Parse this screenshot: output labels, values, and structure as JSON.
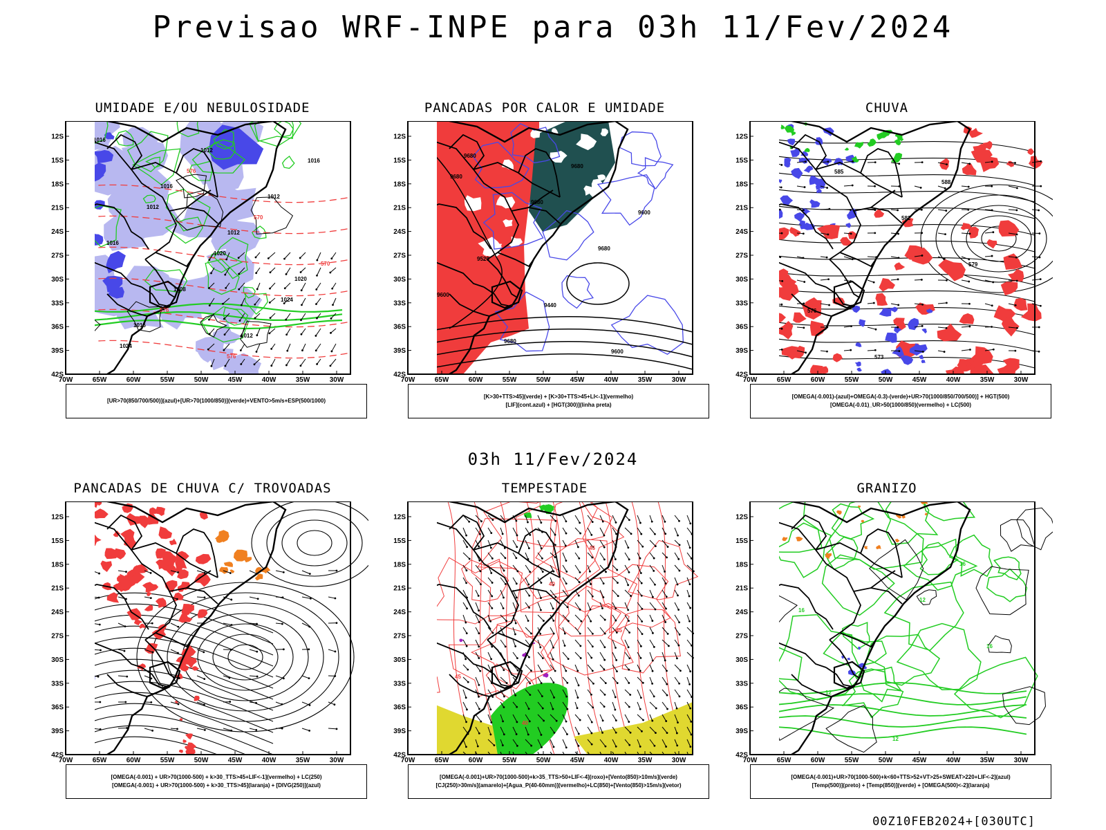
{
  "main_title": "Previsao WRF-INPE  para 03h 11/Fev/2024",
  "mid_title": "03h 11/Fev/2024",
  "footer": "00Z10FEB2024+[030UTC]",
  "lat_ticks": [
    "12S",
    "15S",
    "18S",
    "21S",
    "24S",
    "27S",
    "30S",
    "33S",
    "36S",
    "39S",
    "42S"
  ],
  "lon_ticks": [
    "70W",
    "65W",
    "60W",
    "55W",
    "50W",
    "45W",
    "40W",
    "35W",
    "30W"
  ],
  "colors": {
    "blue": "#4848e8",
    "light_blue": "#b8b8f0",
    "green": "#22cc22",
    "red": "#f03c3c",
    "dark_teal": "#205050",
    "yellow": "#e0d830",
    "orange": "#f08020",
    "purple": "#a020c0"
  },
  "panels": [
    {
      "title": "UMIDADE E/OU NEBULOSIDADE",
      "legend": [
        "[UR>70(850/700/500)](azul)+[UR>70(1000/850)](verde)+VENTO>5m/s+ESP(500/1000)"
      ],
      "labels": [
        "1016",
        "1016",
        "1012",
        "1020",
        "1016",
        "1012",
        "1012",
        "1016",
        "1008",
        "1012",
        "1016",
        "1012",
        "1020",
        "1024",
        "1024",
        "576",
        "570",
        "570",
        "576",
        "576"
      ]
    },
    {
      "title": "PANCADAS POR CALOR E UMIDADE",
      "legend": [
        "[K>30+TTS>45](verde) + [K>30+TTS>45+LI<-1](vermelho)",
        "[LIF](cont.azul) + [HGT(300)](linha preta)"
      ],
      "labels": [
        "9680",
        "9680",
        "9680",
        "9600",
        "9680",
        "9680",
        "9600",
        "9520",
        "9440",
        "9600",
        "9680"
      ]
    },
    {
      "title": "CHUVA",
      "legend": [
        "[OMEGA(-0.001)-(azul)+OMEGA(-0.3)-(verde)+UR>70(1000/850/700/500)] + HGT(500)",
        "[OMEGA(-0.01)_UR>50(1000/850)(vermelho) + LC(500)"
      ],
      "labels": [
        "585",
        "582",
        "579",
        "576",
        "573",
        "588"
      ]
    },
    {
      "title": "PANCADAS DE CHUVA C/ TROVOADAS",
      "legend": [
        "[OMEGA(-0.001) + UR>70(1000-500) + k>30_TTS>45+LIF<-1](vermelho) + LC(250)",
        "[OMEGA(-0.001) + UR>70(1000-500) + k>30_TTS>45](laranja) + [DIVG(250)](azul)"
      ],
      "labels": []
    },
    {
      "title": "TEMPESTADE",
      "legend": [
        "[OMEGA(-0.001)+UR>70(1000-500)+k>35_TTS>50+LIF<-4](roxo)+[Vento(850)>10m/s](verde)",
        "[CJ(250)>30m/s](amarelo)+[Agua_P(40-60mm)](vermelho)+LC(850)+[Vento(850)>15m/s](vetor)"
      ],
      "labels": [
        "40",
        "45",
        "45",
        "40",
        "45"
      ]
    },
    {
      "title": "GRANIZO",
      "legend": [
        "[OMEGA(-0.001)+UR>70(1000-500)+k<60+TTS>52+VT>25+SWEAT>220+LIF<-2](azul)",
        "[Temp(500)](preto) + [Temp(850)](verde) + [OMEGA(500)<-2](laranja)"
      ],
      "labels": [
        "12",
        "16",
        "12",
        "12",
        "16",
        "16"
      ]
    }
  ]
}
